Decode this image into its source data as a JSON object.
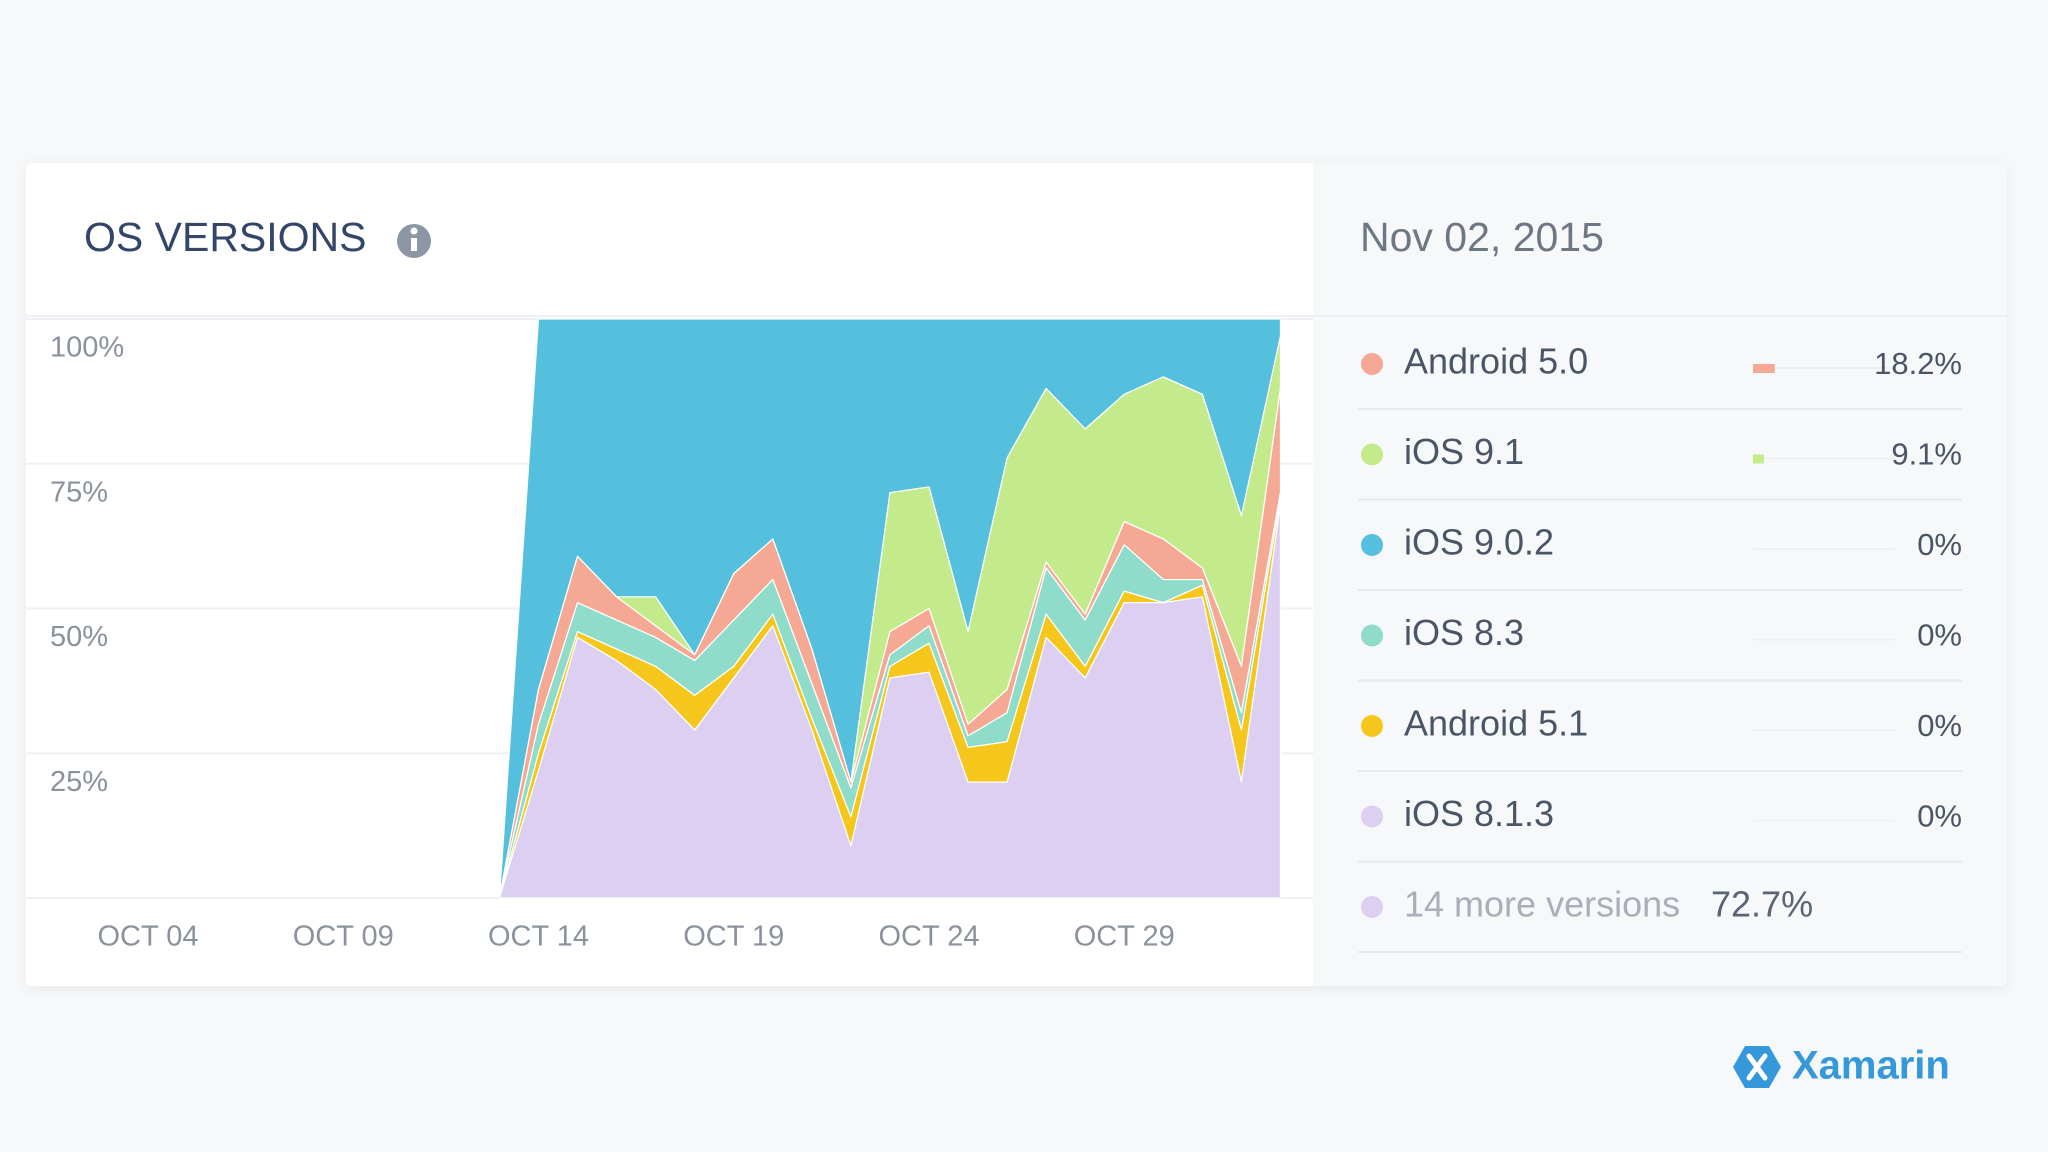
{
  "chart_data": {
    "type": "stacked-area",
    "title": "OS VERSIONS",
    "categories": [
      "OCT 04",
      null,
      null,
      null,
      null,
      "OCT 09",
      null,
      null,
      null,
      null,
      "OCT 14",
      null,
      null,
      null,
      null,
      "OCT 19",
      null,
      null,
      null,
      null,
      "OCT 24",
      null,
      null,
      null,
      null,
      "OCT 29",
      null,
      null,
      null,
      null
    ],
    "ylim": [
      0,
      100
    ],
    "yticks": [
      {
        "value": 25,
        "label": "25%"
      },
      {
        "value": 50,
        "label": "50%"
      },
      {
        "value": 75,
        "label": "75%"
      },
      {
        "value": 100,
        "label": "100%"
      }
    ],
    "grid": true,
    "series": [
      {
        "name": "Android 5.0",
        "color": "#f5a994",
        "values": [
          null,
          null,
          null,
          null,
          null,
          null,
          null,
          null,
          null,
          0,
          6,
          8,
          4,
          2,
          1,
          8,
          7,
          6,
          1,
          4,
          3,
          2,
          4,
          1,
          1,
          4,
          7,
          2,
          8,
          18
        ]
      },
      {
        "name": "iOS 9.1",
        "color": "#c4eb8b",
        "values": [
          null,
          null,
          null,
          null,
          null,
          null,
          null,
          null,
          null,
          0,
          0,
          0,
          0,
          5,
          0,
          0,
          0,
          0,
          0,
          24,
          21,
          16,
          40,
          30,
          32,
          22,
          28,
          30,
          26,
          9
        ]
      },
      {
        "name": "iOS 9.0.2",
        "color": "#55c0de",
        "values": [
          null,
          null,
          null,
          null,
          null,
          null,
          null,
          null,
          null,
          0,
          64,
          41,
          48,
          48,
          58,
          44,
          38,
          57,
          80,
          30,
          29,
          54,
          24,
          12,
          19,
          13,
          10,
          13,
          34,
          3
        ]
      },
      {
        "name": "iOS 8.3",
        "color": "#8fdccb",
        "values": [
          null,
          null,
          null,
          null,
          null,
          null,
          null,
          null,
          null,
          0,
          5,
          5,
          5,
          5,
          6,
          8,
          6,
          6,
          5,
          2,
          3,
          2,
          5,
          8,
          8,
          8,
          4,
          1,
          3,
          1
        ]
      },
      {
        "name": "Android 5.1",
        "color": "#f5c61c",
        "values": [
          null,
          null,
          null,
          null,
          null,
          null,
          null,
          null,
          null,
          0,
          3,
          1,
          2,
          4,
          6,
          2,
          2,
          2,
          5,
          2,
          5,
          6,
          7,
          4,
          2,
          2,
          0,
          2,
          9,
          1
        ]
      },
      {
        "name": "iOS 8.1.3",
        "color": "#dccff1",
        "values": [
          null,
          null,
          null,
          null,
          null,
          null,
          null,
          null,
          null,
          0,
          22,
          45,
          41,
          36,
          29,
          38,
          47,
          29,
          9,
          38,
          39,
          20,
          20,
          45,
          38,
          51,
          51,
          52,
          20,
          68
        ]
      }
    ]
  },
  "summary": {
    "date": "Nov 02, 2015",
    "values": [
      18.2,
      9.1,
      0,
      0,
      0,
      0
    ],
    "value_labels": [
      "18.2%",
      "9.1%",
      "0%",
      "0%",
      "0%",
      "0%"
    ],
    "more": {
      "text": "14 more versions",
      "value": 72.7,
      "value_label": "72.7%"
    }
  },
  "logo": {
    "text": "Xamarin"
  }
}
